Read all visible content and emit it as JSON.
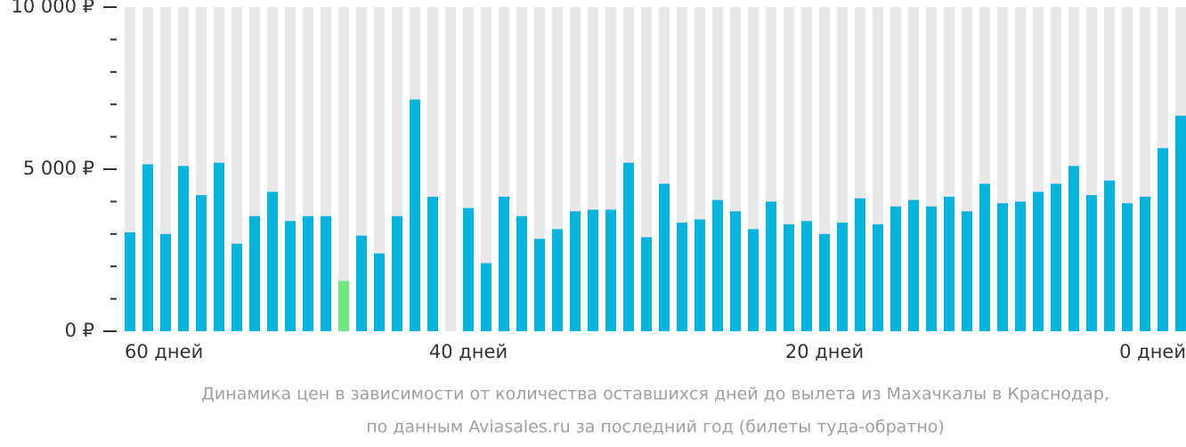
{
  "chart_data": {
    "type": "bar",
    "categories": [
      "60 дней",
      null,
      null,
      null,
      null,
      null,
      null,
      null,
      null,
      null,
      null,
      null,
      null,
      null,
      null,
      null,
      null,
      null,
      null,
      "40 дней",
      null,
      null,
      null,
      null,
      null,
      null,
      null,
      null,
      null,
      null,
      null,
      null,
      null,
      null,
      null,
      null,
      null,
      null,
      null,
      "20 дней",
      null,
      null,
      null,
      null,
      null,
      null,
      null,
      null,
      null,
      null,
      null,
      null,
      null,
      null,
      null,
      null,
      null,
      null,
      null,
      "0 дней"
    ],
    "values": [
      3050,
      5150,
      3000,
      5100,
      4200,
      5200,
      2700,
      3550,
      4300,
      3400,
      3550,
      3550,
      1550,
      2950,
      2400,
      3550,
      7150,
      4150,
      null,
      3800,
      2100,
      4150,
      3550,
      2850,
      3150,
      3700,
      3750,
      3750,
      5200,
      2900,
      4550,
      3350,
      3450,
      4050,
      3700,
      3150,
      4000,
      3300,
      3400,
      3000,
      3350,
      4100,
      3300,
      3850,
      4050,
      3850,
      4150,
      3700,
      4550,
      3950,
      4000,
      4300,
      4550,
      5100,
      4200,
      4650,
      3950,
      4150,
      5650,
      6650
    ],
    "color": "#06b3df",
    "highlight_index": 12,
    "highlight_color": "#6fe883",
    "background_color": "#e8e8e8",
    "ylim": [
      0,
      10000
    ],
    "yticks": [
      {
        "value": 0,
        "label": "0 ₽"
      },
      {
        "value": 5000,
        "label": "5 000 ₽"
      },
      {
        "value": 10000,
        "label": "10 000 ₽"
      }
    ],
    "minor_yticks": [
      1000,
      2000,
      3000,
      4000,
      6000,
      7000,
      8000,
      9000
    ],
    "caption": [
      "Динамика цен в зависимости от количества оставшихся дней до вылета из Махачкалы в Краснодар,",
      "по данным Aviasales.ru за последний год (билеты туда-обратно)"
    ]
  }
}
